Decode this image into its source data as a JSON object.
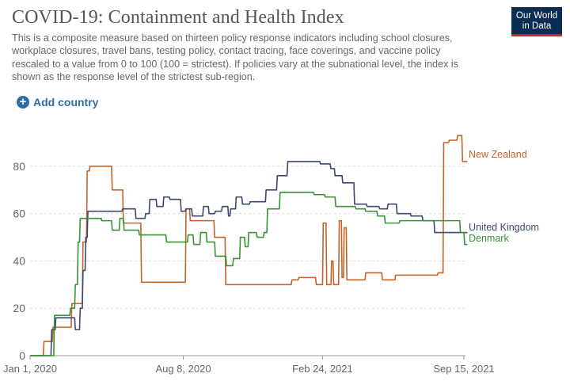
{
  "header": {
    "title": "COVID-19: Containment and Health Index",
    "subtitle": "This is a composite measure based on thirteen policy response indicators including school closures, workplace closures, travel bans, testing policy, contact tracing, face coverings, and vaccine policy rescaled to a value from 0 to 100 (100 = strictest). If policies vary at the subnational level, the index is shown as the response level of the strictest sub-region.",
    "logo_line1": "Our World",
    "logo_line2": "in Data"
  },
  "controls": {
    "add_country_label": "Add country",
    "add_icon": "plus-circle-icon"
  },
  "colors": {
    "New Zealand": "#c5642a",
    "United Kingdom": "#3b4a6b",
    "Denmark": "#3a9137",
    "grid": "#dddddd",
    "axis": "#999999"
  },
  "chart_data": {
    "type": "line",
    "xlabel": "",
    "ylabel": "",
    "ylim": [
      0,
      90
    ],
    "yticks": [
      0,
      20,
      40,
      60,
      80
    ],
    "grid": true,
    "legend": "inline-right",
    "x_tick_labels": [
      {
        "date": "2020-01-01",
        "label": "Jan 1, 2020"
      },
      {
        "date": "2020-08-08",
        "label": "Aug 8, 2020"
      },
      {
        "date": "2021-02-24",
        "label": "Feb 24, 2021"
      },
      {
        "date": "2021-09-15",
        "label": "Sep 15, 2021"
      }
    ],
    "series": [
      {
        "name": "New Zealand",
        "points": [
          [
            "2020-01-01",
            0
          ],
          [
            "2020-01-20",
            0
          ],
          [
            "2020-01-21",
            6
          ],
          [
            "2020-02-02",
            6
          ],
          [
            "2020-02-03",
            12
          ],
          [
            "2020-02-29",
            12
          ],
          [
            "2020-03-01",
            22
          ],
          [
            "2020-03-16",
            22
          ],
          [
            "2020-03-17",
            48
          ],
          [
            "2020-03-22",
            48
          ],
          [
            "2020-03-23",
            78
          ],
          [
            "2020-03-26",
            78
          ],
          [
            "2020-03-27",
            80
          ],
          [
            "2020-04-15",
            80
          ],
          [
            "2020-04-27",
            80
          ],
          [
            "2020-04-28",
            70
          ],
          [
            "2020-05-13",
            70
          ],
          [
            "2020-05-14",
            56
          ],
          [
            "2020-06-08",
            56
          ],
          [
            "2020-06-09",
            31
          ],
          [
            "2020-08-11",
            31
          ],
          [
            "2020-08-12",
            62
          ],
          [
            "2020-08-17",
            62
          ],
          [
            "2020-08-18",
            57
          ],
          [
            "2020-09-21",
            57
          ],
          [
            "2020-09-22",
            50
          ],
          [
            "2020-10-07",
            50
          ],
          [
            "2020-10-08",
            30
          ],
          [
            "2021-01-10",
            30
          ],
          [
            "2021-01-11",
            32
          ],
          [
            "2021-01-20",
            32
          ],
          [
            "2021-01-21",
            33
          ],
          [
            "2021-02-14",
            33
          ],
          [
            "2021-02-15",
            30
          ],
          [
            "2021-02-24",
            30
          ],
          [
            "2021-02-25",
            56
          ],
          [
            "2021-03-01",
            56
          ],
          [
            "2021-03-02",
            30
          ],
          [
            "2021-03-08",
            30
          ],
          [
            "2021-03-09",
            40
          ],
          [
            "2021-03-11",
            40
          ],
          [
            "2021-03-12",
            30
          ],
          [
            "2021-03-19",
            30
          ],
          [
            "2021-03-20",
            57
          ],
          [
            "2021-03-23",
            57
          ],
          [
            "2021-03-24",
            33
          ],
          [
            "2021-03-26",
            33
          ],
          [
            "2021-03-27",
            54
          ],
          [
            "2021-03-30",
            54
          ],
          [
            "2021-03-31",
            32
          ],
          [
            "2021-04-26",
            32
          ],
          [
            "2021-04-27",
            35
          ],
          [
            "2021-05-20",
            35
          ],
          [
            "2021-05-21",
            32
          ],
          [
            "2021-06-08",
            32
          ],
          [
            "2021-06-09",
            34
          ],
          [
            "2021-08-08",
            34
          ],
          [
            "2021-08-09",
            35
          ],
          [
            "2021-08-16",
            35
          ],
          [
            "2021-08-17",
            90
          ],
          [
            "2021-08-24",
            90
          ],
          [
            "2021-08-25",
            91
          ],
          [
            "2021-09-05",
            91
          ],
          [
            "2021-09-06",
            93
          ],
          [
            "2021-09-12",
            93
          ],
          [
            "2021-09-13",
            82
          ],
          [
            "2021-09-20",
            82
          ]
        ]
      },
      {
        "name": "United Kingdom",
        "points": [
          [
            "2020-01-01",
            0
          ],
          [
            "2020-01-31",
            0
          ],
          [
            "2020-02-01",
            11
          ],
          [
            "2020-02-06",
            11
          ],
          [
            "2020-02-07",
            16
          ],
          [
            "2020-03-05",
            16
          ],
          [
            "2020-03-06",
            11
          ],
          [
            "2020-03-12",
            11
          ],
          [
            "2020-03-13",
            20
          ],
          [
            "2020-03-16",
            20
          ],
          [
            "2020-03-17",
            36
          ],
          [
            "2020-03-20",
            36
          ],
          [
            "2020-03-21",
            50
          ],
          [
            "2020-03-23",
            50
          ],
          [
            "2020-03-24",
            61
          ],
          [
            "2020-05-12",
            61
          ],
          [
            "2020-05-13",
            62
          ],
          [
            "2020-05-31",
            62
          ],
          [
            "2020-06-01",
            58
          ],
          [
            "2020-06-14",
            58
          ],
          [
            "2020-06-15",
            60
          ],
          [
            "2020-06-20",
            60
          ],
          [
            "2020-06-21",
            66
          ],
          [
            "2020-06-30",
            66
          ],
          [
            "2020-07-01",
            63
          ],
          [
            "2020-07-10",
            63
          ],
          [
            "2020-07-11",
            67
          ],
          [
            "2020-07-19",
            67
          ],
          [
            "2020-07-20",
            66
          ],
          [
            "2020-08-04",
            66
          ],
          [
            "2020-08-05",
            61
          ],
          [
            "2020-08-11",
            61
          ],
          [
            "2020-08-12",
            62
          ],
          [
            "2020-08-20",
            62
          ],
          [
            "2020-08-21",
            59
          ],
          [
            "2020-09-05",
            59
          ],
          [
            "2020-09-06",
            63
          ],
          [
            "2020-09-13",
            63
          ],
          [
            "2020-09-14",
            60
          ],
          [
            "2020-09-22",
            60
          ],
          [
            "2020-09-23",
            61
          ],
          [
            "2020-10-02",
            61
          ],
          [
            "2020-10-03",
            63
          ],
          [
            "2020-10-11",
            63
          ],
          [
            "2020-10-12",
            59
          ],
          [
            "2020-10-14",
            59
          ],
          [
            "2020-10-15",
            62
          ],
          [
            "2020-10-22",
            62
          ],
          [
            "2020-10-23",
            67
          ],
          [
            "2020-10-31",
            67
          ],
          [
            "2020-11-01",
            64
          ],
          [
            "2020-11-11",
            64
          ],
          [
            "2020-11-12",
            65
          ],
          [
            "2020-12-04",
            65
          ],
          [
            "2020-12-05",
            70
          ],
          [
            "2020-12-20",
            70
          ],
          [
            "2020-12-21",
            76
          ],
          [
            "2021-01-04",
            76
          ],
          [
            "2021-01-05",
            82
          ],
          [
            "2021-02-20",
            82
          ],
          [
            "2021-02-21",
            81
          ],
          [
            "2021-03-07",
            81
          ],
          [
            "2021-03-08",
            79
          ],
          [
            "2021-03-13",
            79
          ],
          [
            "2021-03-14",
            76
          ],
          [
            "2021-03-24",
            76
          ],
          [
            "2021-03-25",
            73
          ],
          [
            "2021-04-10",
            73
          ],
          [
            "2021-04-11",
            64
          ],
          [
            "2021-04-28",
            64
          ],
          [
            "2021-04-29",
            63
          ],
          [
            "2021-05-16",
            63
          ],
          [
            "2021-05-17",
            62
          ],
          [
            "2021-05-28",
            62
          ],
          [
            "2021-05-29",
            64
          ],
          [
            "2021-06-10",
            64
          ],
          [
            "2021-06-11",
            60
          ],
          [
            "2021-06-30",
            60
          ],
          [
            "2021-07-01",
            59
          ],
          [
            "2021-07-17",
            59
          ],
          [
            "2021-07-18",
            57
          ],
          [
            "2021-08-03",
            57
          ],
          [
            "2021-08-04",
            52
          ],
          [
            "2021-09-20",
            52
          ]
        ]
      },
      {
        "name": "Denmark",
        "points": [
          [
            "2020-01-01",
            0
          ],
          [
            "2020-02-04",
            0
          ],
          [
            "2020-02-05",
            17
          ],
          [
            "2020-02-27",
            17
          ],
          [
            "2020-02-28",
            20
          ],
          [
            "2020-03-05",
            20
          ],
          [
            "2020-03-06",
            30
          ],
          [
            "2020-03-09",
            30
          ],
          [
            "2020-03-10",
            48
          ],
          [
            "2020-03-12",
            48
          ],
          [
            "2020-03-13",
            58
          ],
          [
            "2020-04-12",
            58
          ],
          [
            "2020-04-13",
            57
          ],
          [
            "2020-04-27",
            57
          ],
          [
            "2020-04-28",
            53
          ],
          [
            "2020-05-08",
            53
          ],
          [
            "2020-05-09",
            58
          ],
          [
            "2020-05-14",
            58
          ],
          [
            "2020-05-15",
            53
          ],
          [
            "2020-06-05",
            53
          ],
          [
            "2020-06-06",
            51
          ],
          [
            "2020-06-28",
            51
          ],
          [
            "2020-06-29",
            51
          ],
          [
            "2020-07-14",
            51
          ],
          [
            "2020-07-15",
            48
          ],
          [
            "2020-08-14",
            48
          ],
          [
            "2020-08-15",
            51
          ],
          [
            "2020-08-22",
            51
          ],
          [
            "2020-08-23",
            47
          ],
          [
            "2020-09-01",
            47
          ],
          [
            "2020-09-02",
            52
          ],
          [
            "2020-09-10",
            52
          ],
          [
            "2020-09-11",
            48
          ],
          [
            "2020-09-22",
            48
          ],
          [
            "2020-09-23",
            42
          ],
          [
            "2020-10-08",
            42
          ],
          [
            "2020-10-09",
            38
          ],
          [
            "2020-10-18",
            38
          ],
          [
            "2020-10-19",
            41
          ],
          [
            "2020-10-28",
            41
          ],
          [
            "2020-10-29",
            50
          ],
          [
            "2020-11-04",
            50
          ],
          [
            "2020-11-05",
            46
          ],
          [
            "2020-11-09",
            46
          ],
          [
            "2020-11-10",
            52
          ],
          [
            "2020-11-21",
            52
          ],
          [
            "2020-11-22",
            50
          ],
          [
            "2020-12-01",
            50
          ],
          [
            "2020-12-02",
            52
          ],
          [
            "2020-12-06",
            52
          ],
          [
            "2020-12-07",
            62
          ],
          [
            "2020-12-24",
            62
          ],
          [
            "2020-12-25",
            69
          ],
          [
            "2021-02-11",
            69
          ],
          [
            "2021-02-12",
            68
          ],
          [
            "2021-02-27",
            68
          ],
          [
            "2021-02-28",
            67
          ],
          [
            "2021-03-14",
            67
          ],
          [
            "2021-03-15",
            63
          ],
          [
            "2021-04-12",
            63
          ],
          [
            "2021-04-13",
            62
          ],
          [
            "2021-04-26",
            62
          ],
          [
            "2021-04-27",
            61
          ],
          [
            "2021-05-13",
            61
          ],
          [
            "2021-05-14",
            59
          ],
          [
            "2021-05-24",
            59
          ],
          [
            "2021-05-25",
            56
          ],
          [
            "2021-06-14",
            56
          ],
          [
            "2021-06-15",
            57
          ],
          [
            "2021-09-09",
            57
          ],
          [
            "2021-09-10",
            52
          ],
          [
            "2021-09-15",
            52
          ],
          [
            "2021-09-16",
            47
          ],
          [
            "2021-09-20",
            47
          ]
        ]
      }
    ]
  }
}
